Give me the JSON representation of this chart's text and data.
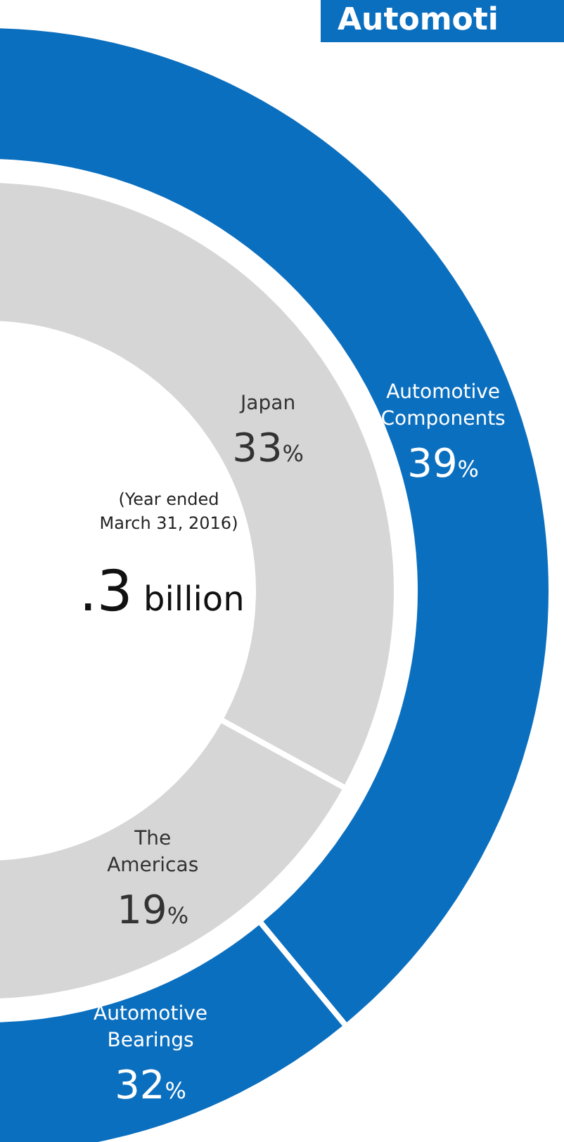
{
  "chart_data": [
    {
      "type": "donut",
      "title": "Automoti",
      "annotations": [
        "(Year ended\nMarch 31, 2016)",
        ".3 billion"
      ],
      "categories": [
        "Automotive Components",
        "Automotive Bearings"
      ],
      "values": [
        39,
        32
      ],
      "colors": [
        "#0b6fbf",
        "#0b6fbf"
      ],
      "value_labels": [
        "39%",
        "32%"
      ]
    },
    {
      "type": "donut",
      "categories": [
        "Japan",
        "The Americas"
      ],
      "values": [
        33,
        19
      ],
      "colors": [
        "#d6d6d6",
        "#d6d6d6"
      ],
      "value_labels": [
        "33%",
        "19%"
      ]
    }
  ]
}
